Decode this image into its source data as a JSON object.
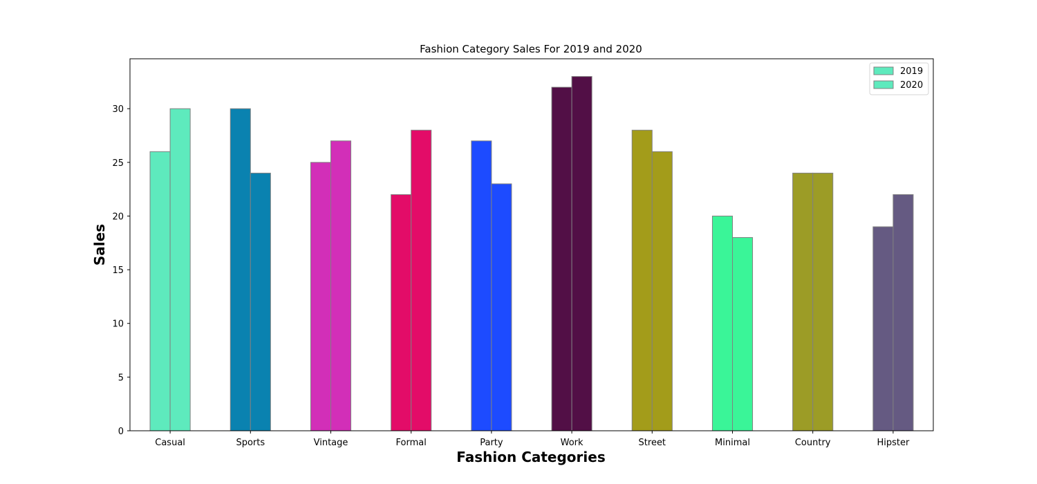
{
  "chart_data": {
    "type": "bar",
    "title": "Fashion Category Sales For 2019 and 2020",
    "xlabel": "Fashion Categories",
    "ylabel": "Sales",
    "categories": [
      "Casual",
      "Sports",
      "Vintage",
      "Formal",
      "Party",
      "Work",
      "Street",
      "Minimal",
      "Country",
      "Hipster"
    ],
    "series": [
      {
        "name": "2019",
        "values": [
          26,
          30,
          25,
          22,
          27,
          32,
          28,
          20,
          24,
          19
        ]
      },
      {
        "name": "2020",
        "values": [
          30,
          24,
          27,
          28,
          23,
          33,
          26,
          18,
          24,
          22
        ]
      }
    ],
    "category_colors": [
      "#5eeabd",
      "#0a82b0",
      "#d22fb8",
      "#e30c68",
      "#1d4bff",
      "#520f46",
      "#a39c1a",
      "#3af598",
      "#9c9c26",
      "#655a82"
    ],
    "bar_edge_color": "#808080",
    "ylim": [
      0,
      34.65
    ],
    "yticks": [
      0,
      5,
      10,
      15,
      20,
      25,
      30
    ],
    "grid": false,
    "legend": {
      "position": "top-right",
      "entries": [
        "2019",
        "2020"
      ]
    }
  }
}
